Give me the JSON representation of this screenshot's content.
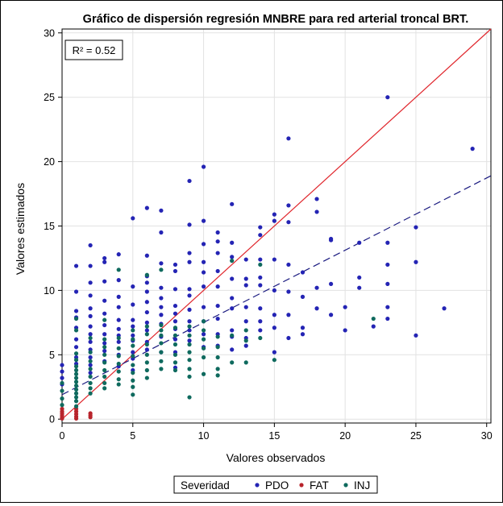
{
  "chart_data": {
    "type": "scatter",
    "title": "Gráfico de dispersión regresión MNBRE para red arterial troncal BRT.",
    "xlabel": "Valores observados",
    "ylabel": "Valores estimados",
    "xlim": [
      0,
      30.3
    ],
    "ylim": [
      -0.3,
      30.3
    ],
    "xticks": [
      0,
      5,
      10,
      15,
      20,
      25,
      30
    ],
    "yticks": [
      0,
      5,
      10,
      15,
      20,
      25,
      30
    ],
    "grid": true,
    "annotation": "R² = 0.52",
    "legend": {
      "title": "Severidad",
      "position": "bottom",
      "entries": [
        {
          "name": "PDO",
          "color": "#2424b4"
        },
        {
          "name": "FAT",
          "color": "#b8242c"
        },
        {
          "name": "INJ",
          "color": "#0f6a5e"
        }
      ]
    },
    "reference_lines": [
      {
        "style": "solid",
        "color": "#e0262c",
        "points": [
          [
            0,
            0
          ],
          [
            30.3,
            30.3
          ]
        ]
      },
      {
        "style": "dashed",
        "color": "#1a1a80",
        "points": [
          [
            0,
            1.9
          ],
          [
            30.3,
            18.9
          ]
        ]
      }
    ],
    "series": [
      {
        "name": "PDO",
        "color": "#2424b4",
        "points": [
          [
            0,
            4.2
          ],
          [
            0,
            3.7
          ],
          [
            0,
            3.2
          ],
          [
            0,
            2.7
          ],
          [
            1,
            11.9
          ],
          [
            1,
            9.9
          ],
          [
            1,
            8.4
          ],
          [
            1,
            7.9
          ],
          [
            1,
            7.1
          ],
          [
            1,
            6.2
          ],
          [
            1,
            5.6
          ],
          [
            1,
            4.8
          ],
          [
            1,
            4.3
          ],
          [
            2,
            13.5
          ],
          [
            2,
            11.9
          ],
          [
            2,
            10.6
          ],
          [
            2,
            9.6
          ],
          [
            2,
            8.6
          ],
          [
            2,
            8.0
          ],
          [
            2,
            7.2
          ],
          [
            2,
            6.6
          ],
          [
            2,
            6.0
          ],
          [
            2,
            5.4
          ],
          [
            2,
            4.8
          ],
          [
            2,
            4.2
          ],
          [
            2,
            3.6
          ],
          [
            3,
            12.5
          ],
          [
            3,
            12.2
          ],
          [
            3,
            10.7
          ],
          [
            3,
            9.2
          ],
          [
            3,
            8.2
          ],
          [
            3,
            7.3
          ],
          [
            3,
            6.6
          ],
          [
            3,
            5.9
          ],
          [
            3,
            5.3
          ],
          [
            3,
            4.5
          ],
          [
            4,
            12.8
          ],
          [
            4,
            10.8
          ],
          [
            4,
            9.5
          ],
          [
            4,
            8.7
          ],
          [
            4,
            7.7
          ],
          [
            4,
            7.0
          ],
          [
            4,
            6.5
          ],
          [
            4,
            6.0
          ],
          [
            4,
            5.0
          ],
          [
            4,
            4.1
          ],
          [
            5,
            15.6
          ],
          [
            5,
            10.3
          ],
          [
            5,
            8.9
          ],
          [
            5,
            7.7
          ],
          [
            5,
            7.2
          ],
          [
            5,
            6.5
          ],
          [
            5,
            6.1
          ],
          [
            5,
            5.2
          ],
          [
            5,
            4.7
          ],
          [
            5,
            3.8
          ],
          [
            6,
            16.4
          ],
          [
            6,
            12.7
          ],
          [
            6,
            11.1
          ],
          [
            6,
            10.6
          ],
          [
            6,
            9.9
          ],
          [
            6,
            9.1
          ],
          [
            6,
            8.3
          ],
          [
            6,
            7.5
          ],
          [
            6,
            6.9
          ],
          [
            6,
            6.0
          ],
          [
            6,
            5.4
          ],
          [
            7,
            16.2
          ],
          [
            7,
            14.5
          ],
          [
            7,
            12.1
          ],
          [
            7,
            10.2
          ],
          [
            7,
            9.4
          ],
          [
            7,
            8.7
          ],
          [
            7,
            8.1
          ],
          [
            7,
            7.4
          ],
          [
            7,
            6.4
          ],
          [
            7,
            5.2
          ],
          [
            8,
            12.0
          ],
          [
            8,
            11.5
          ],
          [
            8,
            10.1
          ],
          [
            8,
            8.8
          ],
          [
            8,
            8.2
          ],
          [
            8,
            7.6
          ],
          [
            8,
            7.0
          ],
          [
            8,
            6.2
          ],
          [
            8,
            5.2
          ],
          [
            8,
            4.0
          ],
          [
            9,
            18.5
          ],
          [
            9,
            15.1
          ],
          [
            9,
            12.9
          ],
          [
            9,
            12.2
          ],
          [
            9,
            10.1
          ],
          [
            9,
            9.6
          ],
          [
            9,
            8.5
          ],
          [
            9,
            7.6
          ],
          [
            9,
            6.9
          ],
          [
            9,
            6.1
          ],
          [
            10,
            19.6
          ],
          [
            10,
            15.4
          ],
          [
            10,
            13.6
          ],
          [
            10,
            12.2
          ],
          [
            10,
            11.4
          ],
          [
            10,
            10.3
          ],
          [
            10,
            8.7
          ],
          [
            10,
            7.6
          ],
          [
            10,
            6.6
          ],
          [
            10,
            5.6
          ],
          [
            11,
            14.5
          ],
          [
            11,
            13.8
          ],
          [
            11,
            12.9
          ],
          [
            11,
            11.5
          ],
          [
            11,
            10.3
          ],
          [
            11,
            8.8
          ],
          [
            11,
            7.8
          ],
          [
            11,
            6.6
          ],
          [
            11,
            5.7
          ],
          [
            12,
            16.7
          ],
          [
            12,
            13.7
          ],
          [
            12,
            12.6
          ],
          [
            12,
            10.9
          ],
          [
            12,
            9.4
          ],
          [
            12,
            8.6
          ],
          [
            12,
            6.9
          ],
          [
            12,
            6.4
          ],
          [
            12,
            5.4
          ],
          [
            13,
            12.4
          ],
          [
            13,
            10.9
          ],
          [
            13,
            10.4
          ],
          [
            13,
            8.7
          ],
          [
            13,
            7.6
          ],
          [
            13,
            6.3
          ],
          [
            13,
            5.7
          ],
          [
            14,
            14.9
          ],
          [
            14,
            14.3
          ],
          [
            14,
            12.4
          ],
          [
            14,
            11.0
          ],
          [
            14,
            10.4
          ],
          [
            14,
            8.6
          ],
          [
            14,
            7.6
          ],
          [
            14,
            6.9
          ],
          [
            15,
            15.9
          ],
          [
            15,
            15.4
          ],
          [
            15,
            12.4
          ],
          [
            15,
            10.0
          ],
          [
            15,
            8.1
          ],
          [
            15,
            7.1
          ],
          [
            15,
            5.2
          ],
          [
            16,
            21.8
          ],
          [
            16,
            16.6
          ],
          [
            16,
            15.3
          ],
          [
            16,
            12.0
          ],
          [
            16,
            9.9
          ],
          [
            16,
            8.1
          ],
          [
            16,
            6.3
          ],
          [
            17,
            11.4
          ],
          [
            17,
            9.5
          ],
          [
            17,
            7.1
          ],
          [
            17,
            6.6
          ],
          [
            18,
            17.1
          ],
          [
            18,
            16.1
          ],
          [
            18,
            10.2
          ],
          [
            18,
            8.6
          ],
          [
            19,
            14.0
          ],
          [
            19,
            13.9
          ],
          [
            19,
            10.5
          ],
          [
            19,
            8.1
          ],
          [
            20,
            8.7
          ],
          [
            20,
            6.9
          ],
          [
            21,
            13.7
          ],
          [
            21,
            11.0
          ],
          [
            21,
            10.2
          ],
          [
            22,
            7.2
          ],
          [
            23,
            25.0
          ],
          [
            23,
            13.7
          ],
          [
            23,
            12.0
          ],
          [
            23,
            10.5
          ],
          [
            23,
            8.7
          ],
          [
            23,
            7.8
          ],
          [
            25,
            14.9
          ],
          [
            25,
            12.2
          ],
          [
            25,
            6.5
          ],
          [
            27,
            8.6
          ],
          [
            29,
            21.0
          ]
        ]
      },
      {
        "name": "FAT",
        "color": "#b8242c",
        "points": [
          [
            0,
            0.8
          ],
          [
            0,
            0.6
          ],
          [
            0,
            0.45
          ],
          [
            0,
            0.3
          ],
          [
            0,
            0.15
          ],
          [
            0,
            0.05
          ],
          [
            1,
            0.8
          ],
          [
            1,
            0.6
          ],
          [
            1,
            0.4
          ],
          [
            1,
            0.2
          ],
          [
            1,
            0.05
          ],
          [
            2,
            0.45
          ],
          [
            2,
            0.3
          ],
          [
            2,
            0.15
          ]
        ]
      },
      {
        "name": "INJ",
        "color": "#0f6a5e",
        "points": [
          [
            0,
            2.8
          ],
          [
            0,
            2.2
          ],
          [
            0,
            1.6
          ],
          [
            0,
            1.1
          ],
          [
            1,
            7.8
          ],
          [
            1,
            6.9
          ],
          [
            1,
            5.1
          ],
          [
            1,
            4.6
          ],
          [
            1,
            4.1
          ],
          [
            1,
            3.8
          ],
          [
            1,
            3.5
          ],
          [
            1,
            3.2
          ],
          [
            1,
            2.9
          ],
          [
            1,
            2.6
          ],
          [
            1,
            2.3
          ],
          [
            1,
            2.0
          ],
          [
            1,
            1.7
          ],
          [
            1,
            1.4
          ],
          [
            1,
            1.0
          ],
          [
            2,
            6.3
          ],
          [
            2,
            5.2
          ],
          [
            2,
            4.5
          ],
          [
            2,
            3.9
          ],
          [
            2,
            3.3
          ],
          [
            2,
            2.8
          ],
          [
            2,
            2.4
          ],
          [
            2,
            2.0
          ],
          [
            3,
            7.7
          ],
          [
            3,
            6.2
          ],
          [
            3,
            5.6
          ],
          [
            3,
            5.0
          ],
          [
            3,
            4.4
          ],
          [
            3,
            3.8
          ],
          [
            3,
            3.3
          ],
          [
            3,
            2.8
          ],
          [
            3,
            2.4
          ],
          [
            4,
            11.6
          ],
          [
            4,
            6.3
          ],
          [
            4,
            5.5
          ],
          [
            4,
            4.9
          ],
          [
            4,
            4.3
          ],
          [
            4,
            3.7
          ],
          [
            4,
            3.1
          ],
          [
            4,
            2.7
          ],
          [
            5,
            6.9
          ],
          [
            5,
            6.2
          ],
          [
            5,
            5.7
          ],
          [
            5,
            4.9
          ],
          [
            5,
            4.2
          ],
          [
            5,
            3.6
          ],
          [
            5,
            3.0
          ],
          [
            5,
            2.5
          ],
          [
            5,
            1.9
          ],
          [
            6,
            11.2
          ],
          [
            6,
            7.2
          ],
          [
            6,
            6.6
          ],
          [
            6,
            5.8
          ],
          [
            6,
            5.0
          ],
          [
            6,
            4.4
          ],
          [
            6,
            3.8
          ],
          [
            6,
            3.2
          ],
          [
            7,
            11.6
          ],
          [
            7,
            7.3
          ],
          [
            7,
            6.9
          ],
          [
            7,
            6.5
          ],
          [
            7,
            5.9
          ],
          [
            7,
            5.2
          ],
          [
            7,
            4.5
          ],
          [
            7,
            3.9
          ],
          [
            8,
            7.1
          ],
          [
            8,
            6.5
          ],
          [
            8,
            5.8
          ],
          [
            8,
            5.0
          ],
          [
            8,
            4.4
          ],
          [
            8,
            3.8
          ],
          [
            9,
            7.2
          ],
          [
            9,
            6.5
          ],
          [
            9,
            5.8
          ],
          [
            9,
            5.2
          ],
          [
            9,
            4.6
          ],
          [
            9,
            3.9
          ],
          [
            9,
            3.3
          ],
          [
            9,
            1.7
          ],
          [
            10,
            7.6
          ],
          [
            10,
            6.9
          ],
          [
            10,
            6.2
          ],
          [
            10,
            5.5
          ],
          [
            10,
            4.8
          ],
          [
            10,
            3.5
          ],
          [
            11,
            6.4
          ],
          [
            11,
            5.6
          ],
          [
            11,
            4.8
          ],
          [
            11,
            3.9
          ],
          [
            11,
            3.4
          ],
          [
            12,
            12.3
          ],
          [
            12,
            6.5
          ],
          [
            12,
            4.4
          ],
          [
            13,
            6.9
          ],
          [
            13,
            6.1
          ],
          [
            13,
            4.4
          ],
          [
            14,
            12.0
          ],
          [
            14,
            6.3
          ],
          [
            15,
            4.6
          ],
          [
            22,
            7.8
          ]
        ]
      }
    ]
  }
}
